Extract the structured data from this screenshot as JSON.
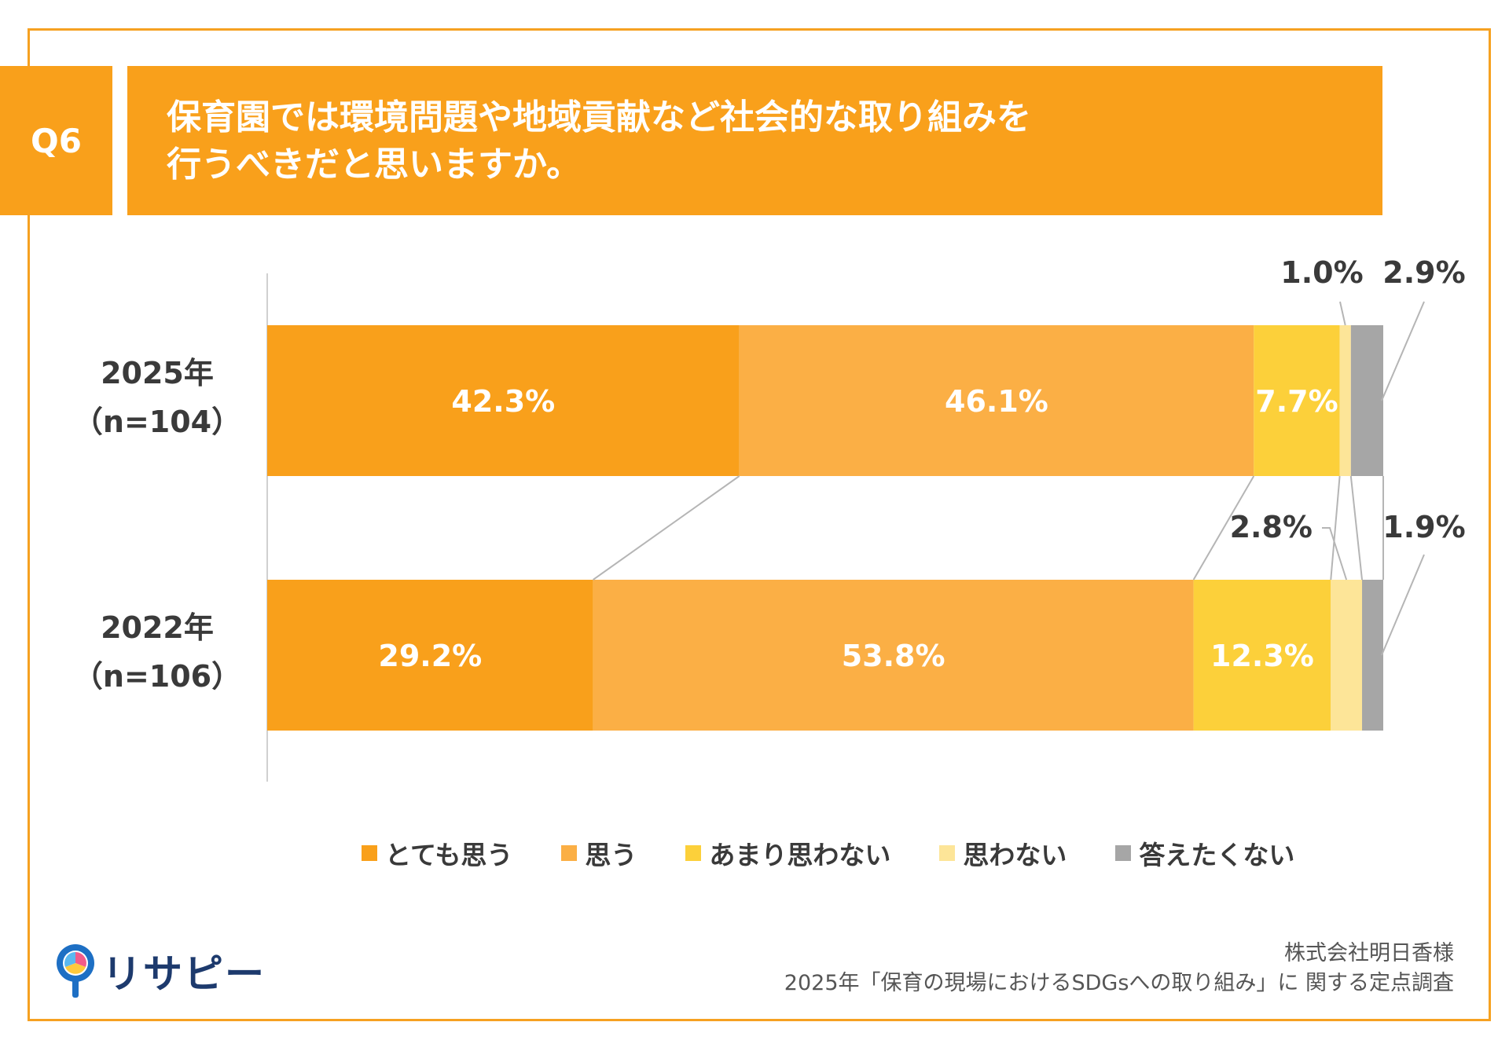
{
  "header": {
    "badge": "Q6",
    "title_line1": "保育園では環境問題や地域貢献など社会的な取り組みを",
    "title_line2": "行うべきだと思いますか。"
  },
  "chart_data": {
    "type": "bar",
    "orientation": "horizontal-stacked-100",
    "categories": [
      {
        "label_line1": "2025年",
        "label_line2": "（n=104）"
      },
      {
        "label_line1": "2022年",
        "label_line2": "（n=106）"
      }
    ],
    "series": [
      {
        "name": "とても思う",
        "color": "#f9a01b",
        "values": [
          42.3,
          29.2
        ],
        "labels": [
          "42.3%",
          "29.2%"
        ]
      },
      {
        "name": "思う",
        "color": "#fbaf45",
        "values": [
          46.1,
          53.8
        ],
        "labels": [
          "46.1%",
          "53.8%"
        ]
      },
      {
        "name": "あまり思わない",
        "color": "#fcd03a",
        "values": [
          7.7,
          12.3
        ],
        "labels": [
          "7.7%",
          "12.3%"
        ]
      },
      {
        "name": "思わない",
        "color": "#fde598",
        "values": [
          1.0,
          2.8
        ],
        "labels": [
          "1.0%",
          "2.8%"
        ]
      },
      {
        "name": "答えたくない",
        "color": "#a6a6a6",
        "values": [
          2.9,
          1.9
        ],
        "labels": [
          "2.9%",
          "1.9%"
        ]
      }
    ],
    "xlim": [
      0,
      100
    ],
    "legend_position": "bottom",
    "grid": false
  },
  "footer": {
    "source_line1": "株式会社明日香様",
    "source_line2": "2025年「保育の現場におけるSDGsへの取り組み」に 関する定点調査",
    "logo_text": "リサピー"
  }
}
